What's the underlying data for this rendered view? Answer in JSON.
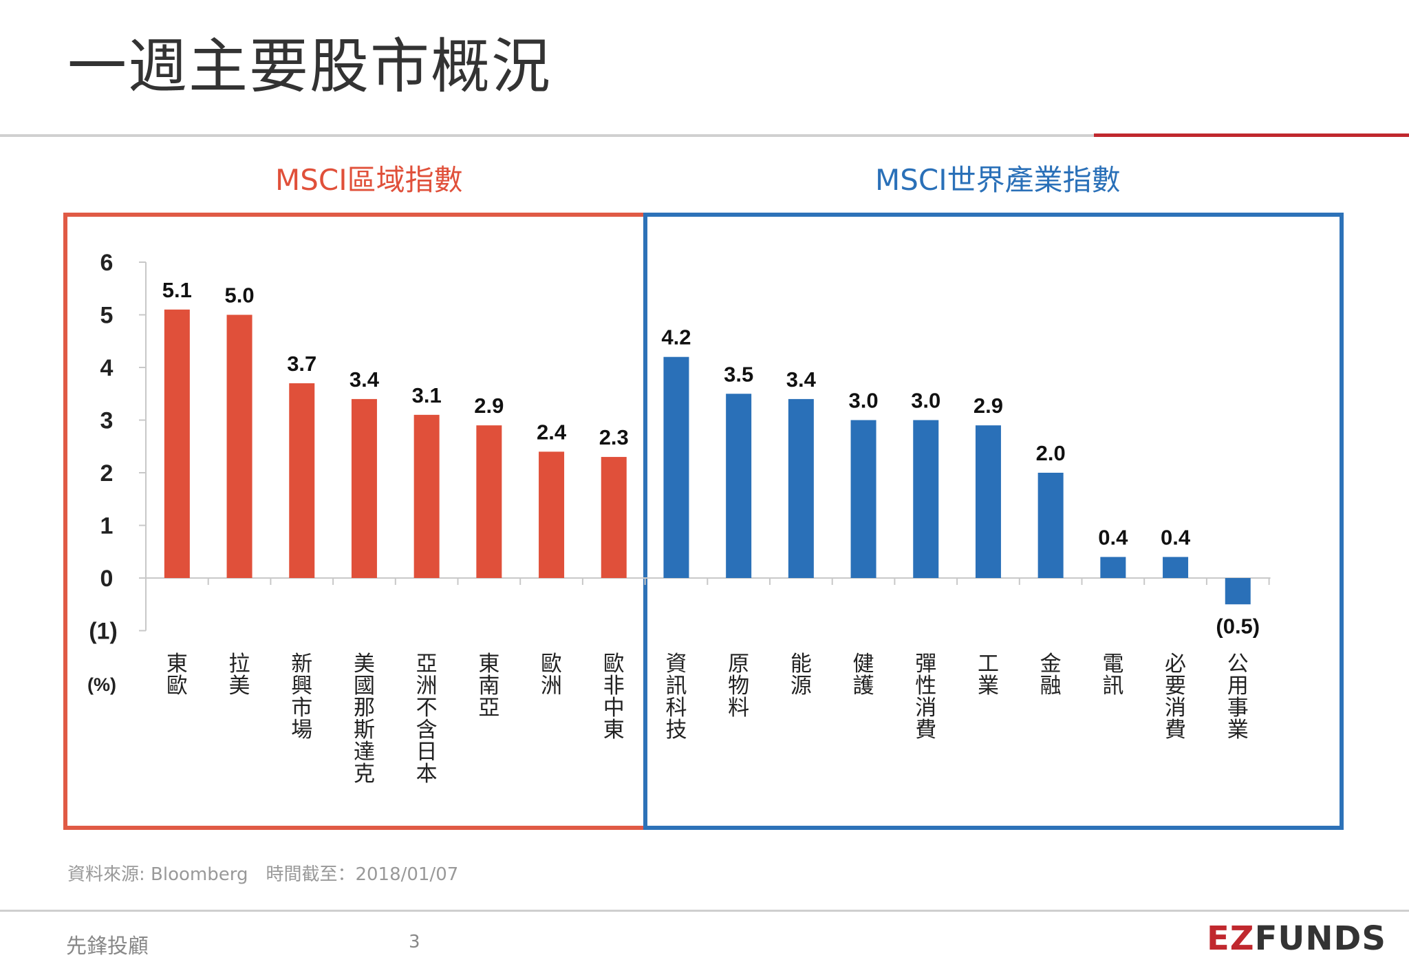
{
  "title": "一週主要股市概況",
  "colors": {
    "region": "#e0503a",
    "sector": "#2a70b8",
    "region_box": "#e05a45",
    "sector_box": "#2d72b8"
  },
  "chart_data": {
    "type": "bar",
    "unit_label": "(%)",
    "ylim": [
      -1,
      6
    ],
    "yticks": [
      {
        "value": 6,
        "label": "6"
      },
      {
        "value": 5,
        "label": "5"
      },
      {
        "value": 4,
        "label": "4"
      },
      {
        "value": 3,
        "label": "3"
      },
      {
        "value": 2,
        "label": "2"
      },
      {
        "value": 1,
        "label": "1"
      },
      {
        "value": 0,
        "label": "0"
      },
      {
        "value": -1,
        "label": "(1)"
      }
    ],
    "groups": [
      {
        "name": "MSCI區域指數",
        "color": "#e0503a",
        "categories": [
          "東歐",
          "拉美",
          "新興市場",
          "美國那斯達克",
          "亞洲不含日本",
          "東南亞",
          "歐洲",
          "歐非中東"
        ],
        "values": [
          5.1,
          5.0,
          3.7,
          3.4,
          3.1,
          2.9,
          2.4,
          2.3
        ],
        "labels": [
          "5.1",
          "5.0",
          "3.7",
          "3.4",
          "3.1",
          "2.9",
          "2.4",
          "2.3"
        ]
      },
      {
        "name": "MSCI世界產業指數",
        "color": "#2a70b8",
        "categories": [
          "資訊科技",
          "原物料",
          "能源",
          "健護",
          "彈性消費",
          "工業",
          "金融",
          "電訊",
          "必要消費",
          "公用事業"
        ],
        "values": [
          4.2,
          3.5,
          3.4,
          3.0,
          3.0,
          2.9,
          2.0,
          0.4,
          0.4,
          -0.5
        ],
        "labels": [
          "4.2",
          "3.5",
          "3.4",
          "3.0",
          "3.0",
          "2.9",
          "2.0",
          "0.4",
          "0.4",
          "(0.5)"
        ]
      }
    ]
  },
  "footer": {
    "source": "資料來源: Bloomberg　時間截至：2018/01/07",
    "company": "先鋒投顧",
    "page": "3",
    "logo_ez": "EZ",
    "logo_funds": "FUNDS"
  }
}
